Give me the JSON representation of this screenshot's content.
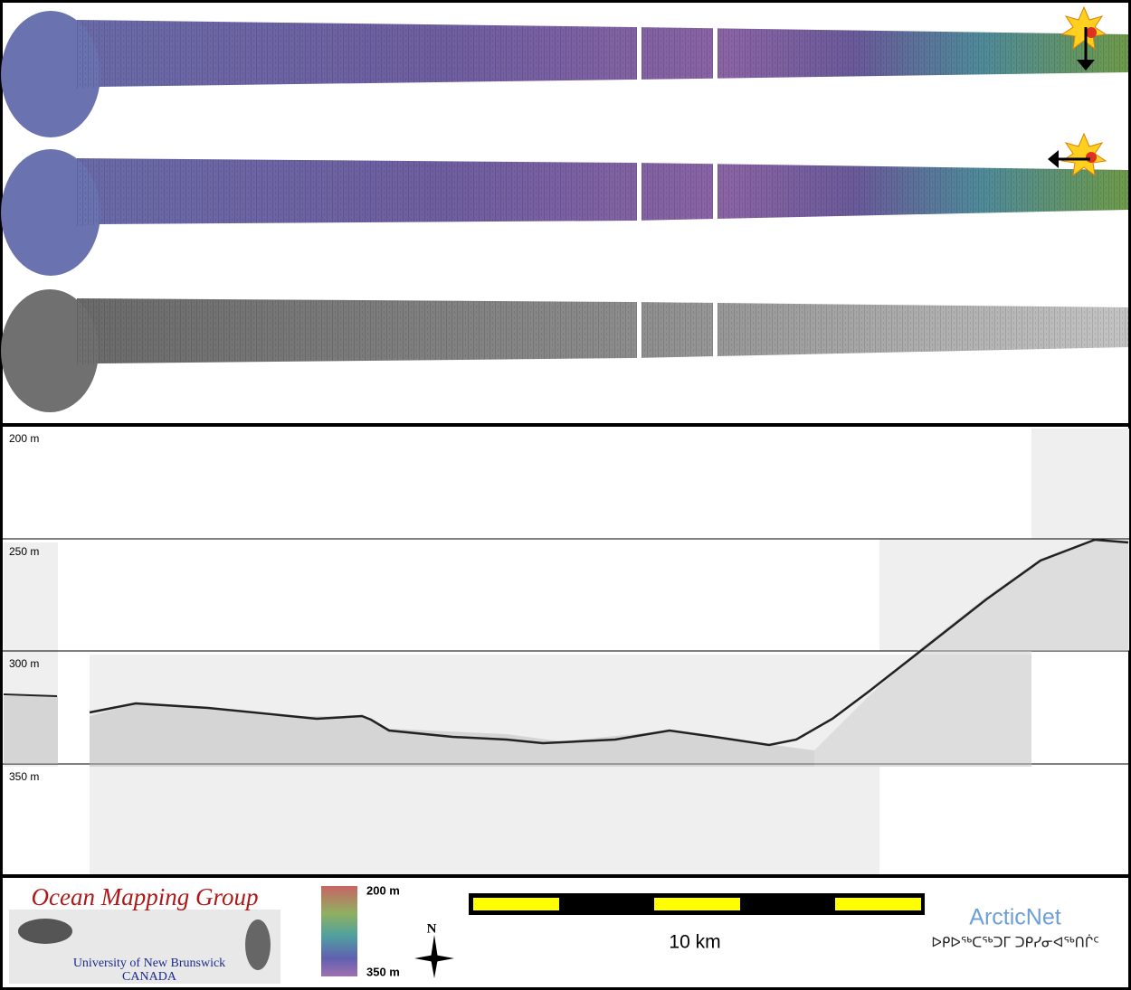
{
  "profile": {
    "depth_labels": [
      "200 m",
      "250 m",
      "300 m",
      "350 m"
    ]
  },
  "logo": {
    "title": "Ocean Mapping Group",
    "university": "University of New Brunswick",
    "country": "CANADA"
  },
  "colorbar": {
    "top": "200 m",
    "bottom": "350 m"
  },
  "compass": "N",
  "scale_bar": "10 km",
  "arcticnet": {
    "name": "ArcticNet",
    "syllabics": "ᐅᑭᐅᖅᑕᖅᑐᒥ ᑐᑭᓯᓂᐊᖅᑎᒌᑦ"
  }
}
